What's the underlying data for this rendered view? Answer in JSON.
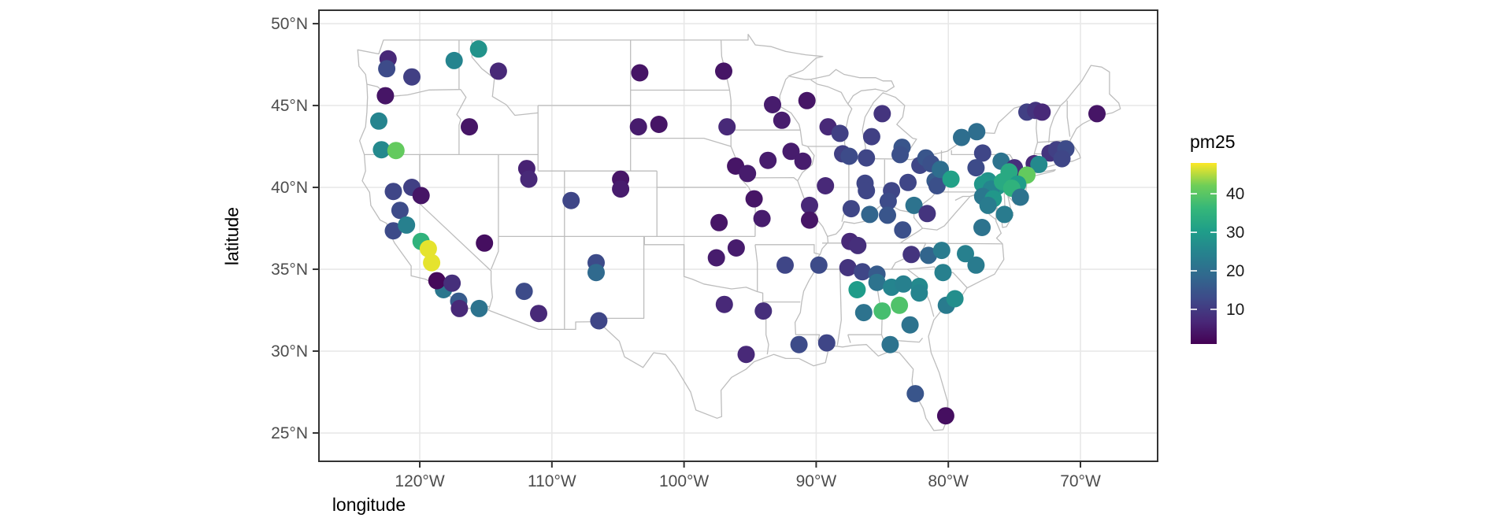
{
  "chart_data": {
    "type": "scatter",
    "title": "",
    "xlabel": "longitude",
    "ylabel": "latitude",
    "x_ticks": [
      "120°W",
      "110°W",
      "100°W",
      "90°W",
      "80°W",
      "70°W"
    ],
    "x_tick_values": [
      -120,
      -110,
      -100,
      -90,
      -80,
      -70
    ],
    "y_ticks": [
      "25°N",
      "30°N",
      "35°N",
      "40°N",
      "45°N",
      "50°N"
    ],
    "y_tick_values": [
      25,
      30,
      35,
      40,
      45,
      50
    ],
    "xlim": [
      -127.63,
      -64.16
    ],
    "ylim": [
      23.27,
      50.82
    ],
    "grid": true,
    "basemap": "us-states",
    "legend": {
      "title": "pm25",
      "position": "right",
      "tick_labels": [
        "10",
        "20",
        "30",
        "40"
      ],
      "tick_values": [
        10,
        20,
        30,
        40
      ],
      "domain": [
        1,
        48
      ],
      "colorscale_name": "viridis"
    },
    "colors": {
      "viridis_stops": [
        "#440154",
        "#482878",
        "#3e4a89",
        "#31688e",
        "#26828e",
        "#1f9e89",
        "#35b779",
        "#6ece58",
        "#fde725"
      ],
      "panel_border": "#333333",
      "gridline": "#e8e8e8",
      "map_line": "#bdbdbd",
      "tick_mark": "#333333",
      "tick_label": "#4d4d4d",
      "axis_title": "#000000",
      "background": "#ffffff"
    },
    "series_name": "pm25",
    "points_format": [
      "longitude",
      "latitude",
      "pm25"
    ],
    "points": [
      [
        -122.4,
        47.85,
        7
      ],
      [
        -122.5,
        47.25,
        13
      ],
      [
        -120.6,
        46.75,
        11
      ],
      [
        -117.4,
        47.75,
        25
      ],
      [
        -115.55,
        48.45,
        28
      ],
      [
        -114.05,
        47.1,
        7
      ],
      [
        -122.6,
        45.6,
        4
      ],
      [
        -123.1,
        44.05,
        25
      ],
      [
        -122.9,
        42.3,
        26
      ],
      [
        -121.8,
        42.25,
        41
      ],
      [
        -116.25,
        43.7,
        4
      ],
      [
        -111.9,
        41.15,
        6
      ],
      [
        -111.75,
        40.5,
        7
      ],
      [
        -115.1,
        36.6,
        3
      ],
      [
        -108.55,
        39.2,
        12
      ],
      [
        -104.8,
        40.5,
        4
      ],
      [
        -104.8,
        39.9,
        5
      ],
      [
        -106.65,
        35.4,
        13
      ],
      [
        -106.65,
        34.8,
        19
      ],
      [
        -106.45,
        31.85,
        12
      ],
      [
        -122.0,
        39.75,
        12
      ],
      [
        -120.6,
        40.0,
        11
      ],
      [
        -119.9,
        39.5,
        4
      ],
      [
        -121.5,
        38.6,
        13
      ],
      [
        -122.0,
        37.35,
        13
      ],
      [
        -121.0,
        37.7,
        24
      ],
      [
        -119.9,
        36.7,
        35
      ],
      [
        -119.35,
        36.25,
        47
      ],
      [
        -119.1,
        35.4,
        47
      ],
      [
        -118.2,
        33.75,
        22
      ],
      [
        -118.7,
        34.3,
        2
      ],
      [
        -117.55,
        34.15,
        8
      ],
      [
        -117.05,
        33.05,
        16
      ],
      [
        -117.0,
        32.6,
        7
      ],
      [
        -115.5,
        32.6,
        21
      ],
      [
        -112.1,
        33.65,
        13
      ],
      [
        -111.0,
        32.3,
        7
      ],
      [
        -103.35,
        47.0,
        4
      ],
      [
        -97.0,
        47.1,
        4
      ],
      [
        -103.45,
        43.7,
        5
      ],
      [
        -101.9,
        43.85,
        4
      ],
      [
        -96.75,
        43.7,
        7
      ],
      [
        -96.1,
        41.3,
        4
      ],
      [
        -95.2,
        40.85,
        5
      ],
      [
        -94.7,
        39.3,
        4
      ],
      [
        -94.1,
        38.1,
        5
      ],
      [
        -97.35,
        37.85,
        4
      ],
      [
        -96.05,
        36.3,
        5
      ],
      [
        -97.55,
        35.7,
        5
      ],
      [
        -96.95,
        32.85,
        7
      ],
      [
        -95.3,
        29.8,
        7
      ],
      [
        -94.0,
        32.45,
        8
      ],
      [
        -93.3,
        45.05,
        5
      ],
      [
        -90.7,
        45.3,
        4
      ],
      [
        -92.6,
        44.1,
        5
      ],
      [
        -93.65,
        41.65,
        5
      ],
      [
        -91.9,
        42.2,
        5
      ],
      [
        -91.0,
        41.6,
        5
      ],
      [
        -89.1,
        43.7,
        7
      ],
      [
        -88.2,
        43.3,
        11
      ],
      [
        -88.0,
        42.05,
        11
      ],
      [
        -87.5,
        41.9,
        13
      ],
      [
        -86.2,
        41.8,
        12
      ],
      [
        -85.8,
        43.1,
        11
      ],
      [
        -85.0,
        44.5,
        9
      ],
      [
        -83.5,
        42.45,
        15
      ],
      [
        -83.65,
        42.0,
        14
      ],
      [
        -89.3,
        40.1,
        7
      ],
      [
        -90.5,
        38.9,
        7
      ],
      [
        -90.5,
        38.0,
        4
      ],
      [
        -87.35,
        38.7,
        12
      ],
      [
        -86.3,
        40.25,
        12
      ],
      [
        -86.2,
        39.8,
        12
      ],
      [
        -84.3,
        39.8,
        12
      ],
      [
        -84.55,
        39.15,
        13
      ],
      [
        -85.95,
        38.35,
        18
      ],
      [
        -84.6,
        38.3,
        15
      ],
      [
        -83.45,
        37.4,
        14
      ],
      [
        -82.6,
        38.9,
        21
      ],
      [
        -81.6,
        38.4,
        9
      ],
      [
        -83.05,
        40.3,
        12
      ],
      [
        -82.15,
        41.35,
        12
      ],
      [
        -81.7,
        41.8,
        15
      ],
      [
        -81.3,
        41.45,
        14
      ],
      [
        -81.0,
        40.4,
        16
      ],
      [
        -80.85,
        40.1,
        14
      ],
      [
        -80.6,
        41.1,
        20
      ],
      [
        -79.8,
        40.5,
        31
      ],
      [
        -79.0,
        43.05,
        20
      ],
      [
        -77.85,
        43.4,
        20
      ],
      [
        -74.05,
        44.6,
        11
      ],
      [
        -73.4,
        44.7,
        9
      ],
      [
        -72.9,
        44.6,
        7
      ],
      [
        -68.75,
        44.5,
        4
      ],
      [
        -77.4,
        42.1,
        12
      ],
      [
        -77.9,
        41.2,
        13
      ],
      [
        -76.0,
        41.6,
        21
      ],
      [
        -72.3,
        42.1,
        9
      ],
      [
        -71.8,
        42.3,
        11
      ],
      [
        -71.1,
        42.35,
        13
      ],
      [
        -71.4,
        41.75,
        12
      ],
      [
        -73.5,
        41.45,
        7
      ],
      [
        -75.0,
        41.2,
        8
      ],
      [
        -73.15,
        41.4,
        26
      ],
      [
        -74.05,
        40.75,
        41
      ],
      [
        -77.0,
        40.4,
        28
      ],
      [
        -77.4,
        40.2,
        29
      ],
      [
        -76.3,
        40.05,
        29
      ],
      [
        -76.75,
        39.9,
        25
      ],
      [
        -75.9,
        40.35,
        33
      ],
      [
        -75.4,
        40.95,
        33
      ],
      [
        -74.75,
        40.2,
        30
      ],
      [
        -75.2,
        39.95,
        35
      ],
      [
        -77.4,
        39.45,
        22
      ],
      [
        -76.6,
        39.3,
        29
      ],
      [
        -77.0,
        38.9,
        23
      ],
      [
        -74.55,
        39.4,
        21
      ],
      [
        -75.75,
        38.35,
        23
      ],
      [
        -77.45,
        37.55,
        21
      ],
      [
        -82.8,
        35.9,
        9
      ],
      [
        -81.5,
        35.85,
        18
      ],
      [
        -80.5,
        36.15,
        23
      ],
      [
        -78.7,
        35.95,
        24
      ],
      [
        -77.9,
        35.25,
        23
      ],
      [
        -80.4,
        34.8,
        24
      ],
      [
        -82.2,
        33.95,
        26
      ],
      [
        -82.2,
        33.55,
        25
      ],
      [
        -80.15,
        32.8,
        23
      ],
      [
        -79.5,
        33.2,
        27
      ],
      [
        -87.45,
        36.7,
        7
      ],
      [
        -86.85,
        36.45,
        8
      ],
      [
        -92.35,
        35.25,
        12
      ],
      [
        -89.8,
        35.25,
        13
      ],
      [
        -87.6,
        35.1,
        9
      ],
      [
        -86.5,
        34.85,
        12
      ],
      [
        -85.4,
        34.7,
        16
      ],
      [
        -85.4,
        34.2,
        21
      ],
      [
        -84.3,
        33.9,
        25
      ],
      [
        -83.4,
        34.1,
        24
      ],
      [
        -86.9,
        33.75,
        30
      ],
      [
        -86.4,
        32.35,
        21
      ],
      [
        -85.0,
        32.45,
        38
      ],
      [
        -83.7,
        32.8,
        39
      ],
      [
        -82.9,
        31.6,
        21
      ],
      [
        -91.3,
        30.4,
        13
      ],
      [
        -89.2,
        30.5,
        12
      ],
      [
        -84.4,
        30.4,
        21
      ],
      [
        -82.5,
        27.4,
        15
      ],
      [
        -80.2,
        26.05,
        3
      ]
    ]
  }
}
